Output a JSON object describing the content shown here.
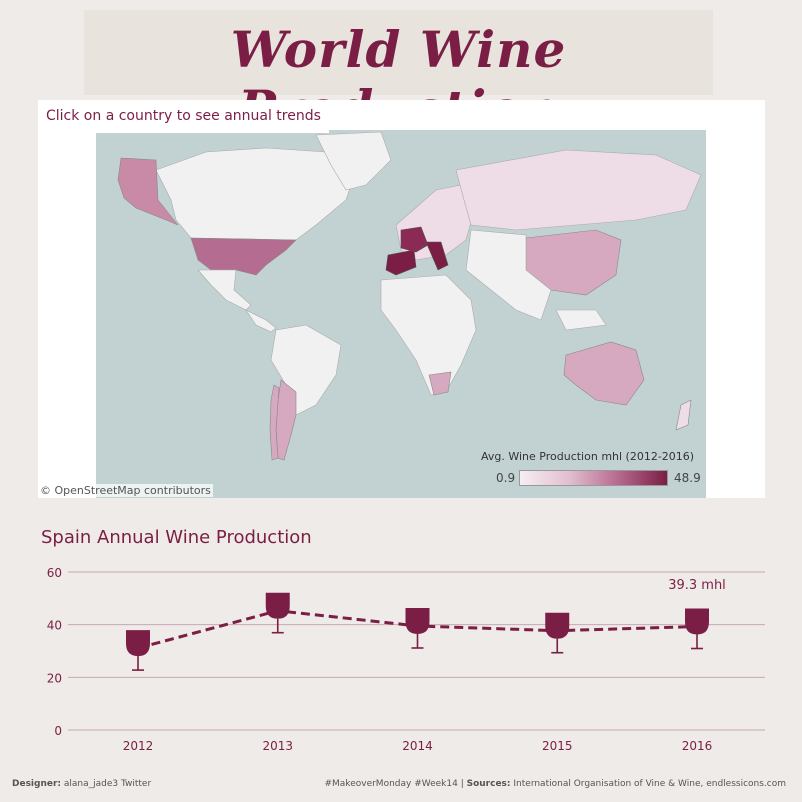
{
  "title": "World Wine Production",
  "map": {
    "hint": "Click on a country to see annual trends",
    "credit": "© OpenStreetMap contributors",
    "legend_title": "Avg. Wine Production mhl (2012-2016)",
    "legend_min": "0.9",
    "legend_max": "48.9",
    "colors": {
      "water": "#c2d2d3",
      "land": "#f1f1f1",
      "low": "#eedde6",
      "mid": "#c98aa8",
      "high": "#7b1e45"
    }
  },
  "chart_title": "Spain Annual Wine Production",
  "chart_data": {
    "type": "line",
    "title": "Spain Annual Wine Production",
    "categories": [
      "2012",
      "2013",
      "2014",
      "2015",
      "2016"
    ],
    "series": [
      {
        "values": [
          31.1,
          45.3,
          39.5,
          37.7,
          39.3
        ]
      }
    ],
    "ylim": [
      0,
      60
    ],
    "yticks": [
      0,
      20,
      40,
      60
    ],
    "annotation": "39.3 mhl",
    "grid": true,
    "color": "#7b1e45",
    "marker": "wine-glass-icon"
  },
  "footer": {
    "designer_label": "Designer:",
    "designer_value": "alana_jade3 Twitter",
    "tags": "#MakeoverMonday #Week14 | ",
    "sources_label": "Sources:",
    "sources_value": "International Organisation of Vine & Wine, endlessicons.com"
  }
}
